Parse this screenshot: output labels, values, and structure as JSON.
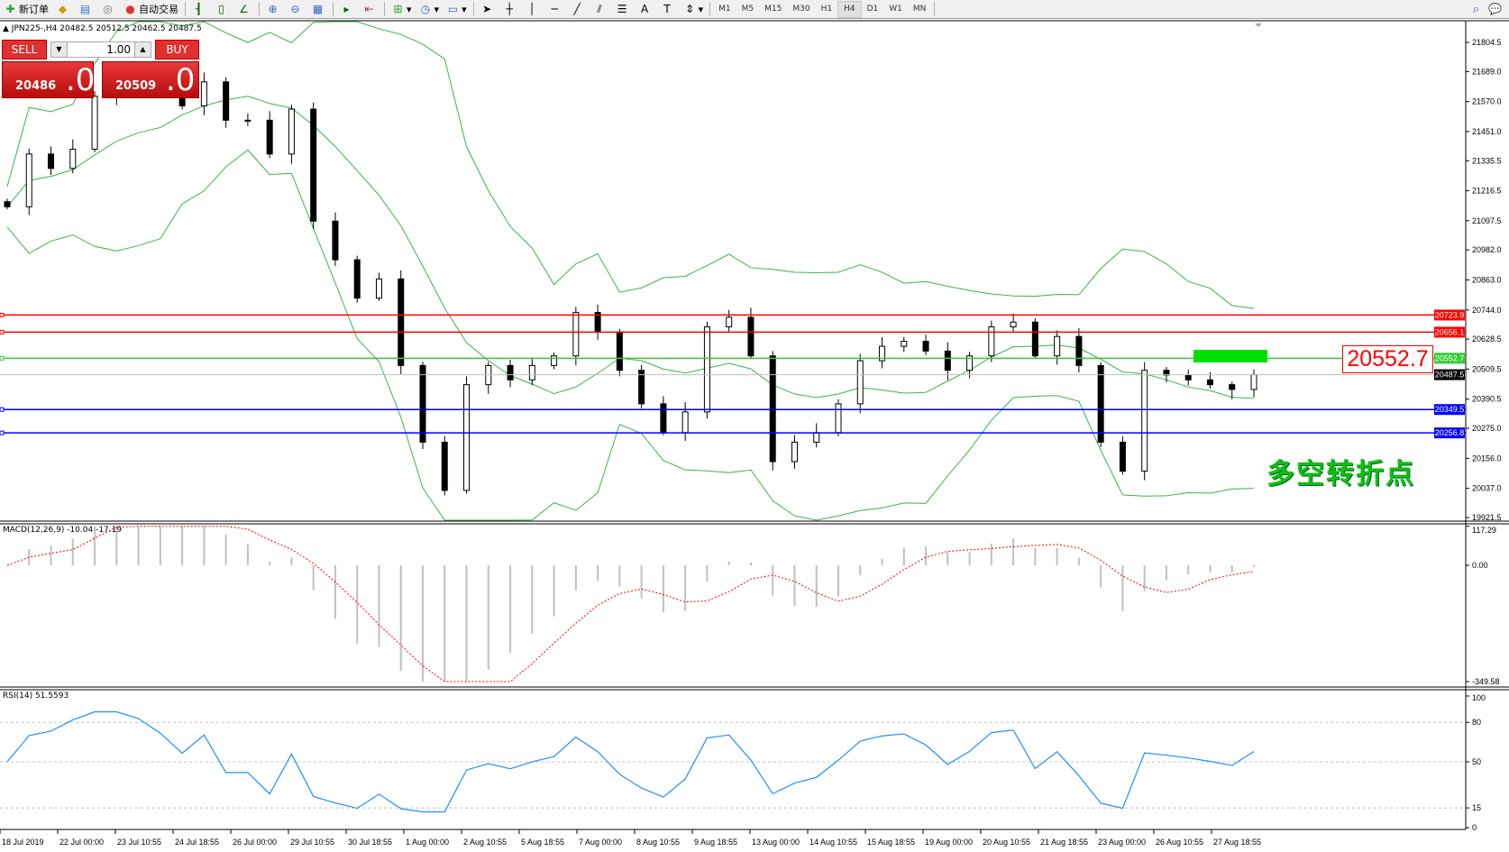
{
  "toolbar": {
    "new_order": "新订单",
    "auto_trading": "自动交易",
    "tools": [
      "bar-chart-icon",
      "candlestick-icon",
      "line-chart-icon",
      "zoom-in-icon",
      "zoom-out-icon",
      "tile-windows-icon",
      "auto-scroll-icon",
      "chart-shift-icon",
      "indicators-icon",
      "periods-icon",
      "templates-icon",
      "cursor-icon",
      "crosshair-icon",
      "vertical-line-icon",
      "horizontal-line-icon",
      "trendline-icon",
      "equidistant-channel-icon",
      "fibonacci-icon",
      "text-icon",
      "text-label-icon",
      "arrows-icon"
    ],
    "timeframes": [
      "M1",
      "M5",
      "M15",
      "M30",
      "H1",
      "H4",
      "D1",
      "W1",
      "MN"
    ],
    "active_timeframe": "H4"
  },
  "chart": {
    "header": "JPN225-,H4  20482.5 20512.5 20462.5 20487.5",
    "one_click": {
      "sell": "SELL",
      "buy": "BUY",
      "lot": "1.00",
      "sell_price": "20486",
      "sell_pips": ".0",
      "buy_price": "20509",
      "buy_pips": ".0"
    },
    "annotation_price": "20552.7",
    "annotation_text": "多空转折点",
    "colors": {
      "bull": "#ffffff",
      "bear": "#000000",
      "bands": "#3cb44b",
      "red_level": "#ff0000",
      "green_level": "#33cc33",
      "blue_level": "#0000ff",
      "rsi": "#1e90ff",
      "signal": "#ff0000",
      "histogram": "#c0c0c0"
    }
  },
  "chart_data": {
    "type": "candlestick",
    "symbol": "JPN225-",
    "timeframe": "H4",
    "closes": [
      21153,
      21362,
      21305,
      21381,
      21591,
      21686,
      21648,
      21610,
      21553,
      21648,
      21496,
      21496,
      21362,
      21540,
      21096,
      20943,
      20791,
      20867,
      20524,
      20220,
      20029,
      20448,
      20524,
      20467,
      20524,
      20562,
      20734,
      20657,
      20505,
      20372,
      20258,
      20340,
      20677,
      20715,
      20562,
      20143,
      20220,
      20258,
      20372,
      20543,
      20600,
      20620,
      20581,
      20505,
      20562,
      20677,
      20696,
      20562,
      20639,
      20524,
      20220,
      20105,
      20505,
      20486,
      20467,
      20448,
      20429,
      20487.5
    ],
    "ylim": [
      19921.5,
      21804.5
    ],
    "yticks": [
      "21804.5",
      "21689.0",
      "21570.0",
      "21451.0",
      "21335.5",
      "21216.5",
      "21097.5",
      "20982.0",
      "20863.0",
      "20744.0",
      "20628.5",
      "20509.5",
      "20390.5",
      "20275.0",
      "20156.0",
      "20037.0",
      "19921.5"
    ],
    "levels": [
      {
        "value": "20723.9",
        "color": "#ff0000"
      },
      {
        "value": "20656.1",
        "color": "#ff0000"
      },
      {
        "value": "20552.7",
        "color": "#33cc33"
      },
      {
        "value": "20487.5",
        "color": "#000000"
      },
      {
        "value": "20349.5",
        "color": "#0000ff"
      },
      {
        "value": "20256.8",
        "color": "#0000ff"
      }
    ],
    "xticks": [
      "18 Jul 2019",
      "22 Jul 00:00",
      "23 Jul 10:55",
      "24 Jul 18:55",
      "26 Jul 00:00",
      "29 Jul 10:55",
      "30 Jul 18:55",
      "1 Aug 00:00",
      "2 Aug 10:55",
      "5 Aug 18:55",
      "7 Aug 00:00",
      "8 Aug 10:55",
      "9 Aug 18:55",
      "13 Aug 00:00",
      "14 Aug 10:55",
      "15 Aug 18:55",
      "19 Aug 00:00",
      "20 Aug 10:55",
      "21 Aug 18:55",
      "23 Aug 00:00",
      "26 Aug 10:55",
      "27 Aug 18:55"
    ],
    "macd": {
      "label": "MACD(12,26,9) -10.04 -17.19",
      "yticks": [
        "117.29",
        "0.00",
        "-349.58"
      ],
      "ylim": [
        -349.58,
        117.29
      ]
    },
    "rsi": {
      "label": "RSI(14) 51.5593",
      "yticks": [
        "100",
        "80",
        "50",
        "15",
        "0"
      ],
      "levels": [
        80,
        50,
        15
      ],
      "ylim": [
        0,
        100
      ]
    }
  }
}
